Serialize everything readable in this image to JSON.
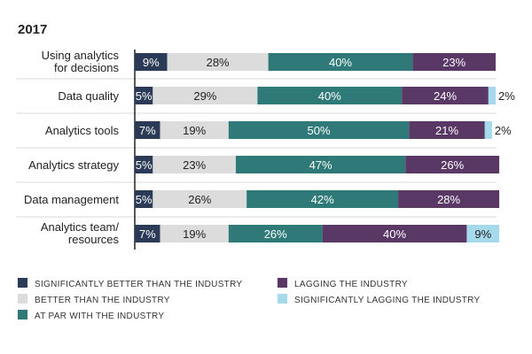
{
  "chart_data": {
    "type": "bar",
    "orientation": "horizontal",
    "stacked": true,
    "title": "2017",
    "categories": [
      [
        "Using analytics",
        "for decisions"
      ],
      [
        "Data quality"
      ],
      [
        "Analytics tools"
      ],
      [
        "Analytics strategy"
      ],
      [
        "Data management"
      ],
      [
        "Analytics team/",
        "resources"
      ]
    ],
    "series": [
      {
        "name": "SIGNIFICANTLY BETTER THAN THE INDUSTRY",
        "color": "#2b3b57",
        "text_color": "#ffffff",
        "values": [
          9,
          5,
          7,
          5,
          5,
          7
        ]
      },
      {
        "name": "BETTER THAN THE INDUSTRY",
        "color": "#dcdcdc",
        "text_color": "#222222",
        "values": [
          28,
          29,
          19,
          23,
          26,
          19
        ]
      },
      {
        "name": "AT PAR WITH THE INDUSTRY",
        "color": "#2f7a78",
        "text_color": "#ffffff",
        "values": [
          40,
          40,
          50,
          47,
          42,
          26
        ]
      },
      {
        "name": "LAGGING THE INDUSTRY",
        "color": "#5a3866",
        "text_color": "#ffffff",
        "values": [
          23,
          24,
          21,
          26,
          28,
          40
        ]
      },
      {
        "name": "SIGNIFICANTLY LAGGING THE INDUSTRY",
        "color": "#a6d9ec",
        "text_color": "#222222",
        "values": [
          0,
          2,
          2,
          0,
          0,
          9
        ]
      }
    ],
    "value_suffix": "%",
    "xlim": [
      0,
      100
    ],
    "grid": false,
    "legend_position": "bottom"
  }
}
